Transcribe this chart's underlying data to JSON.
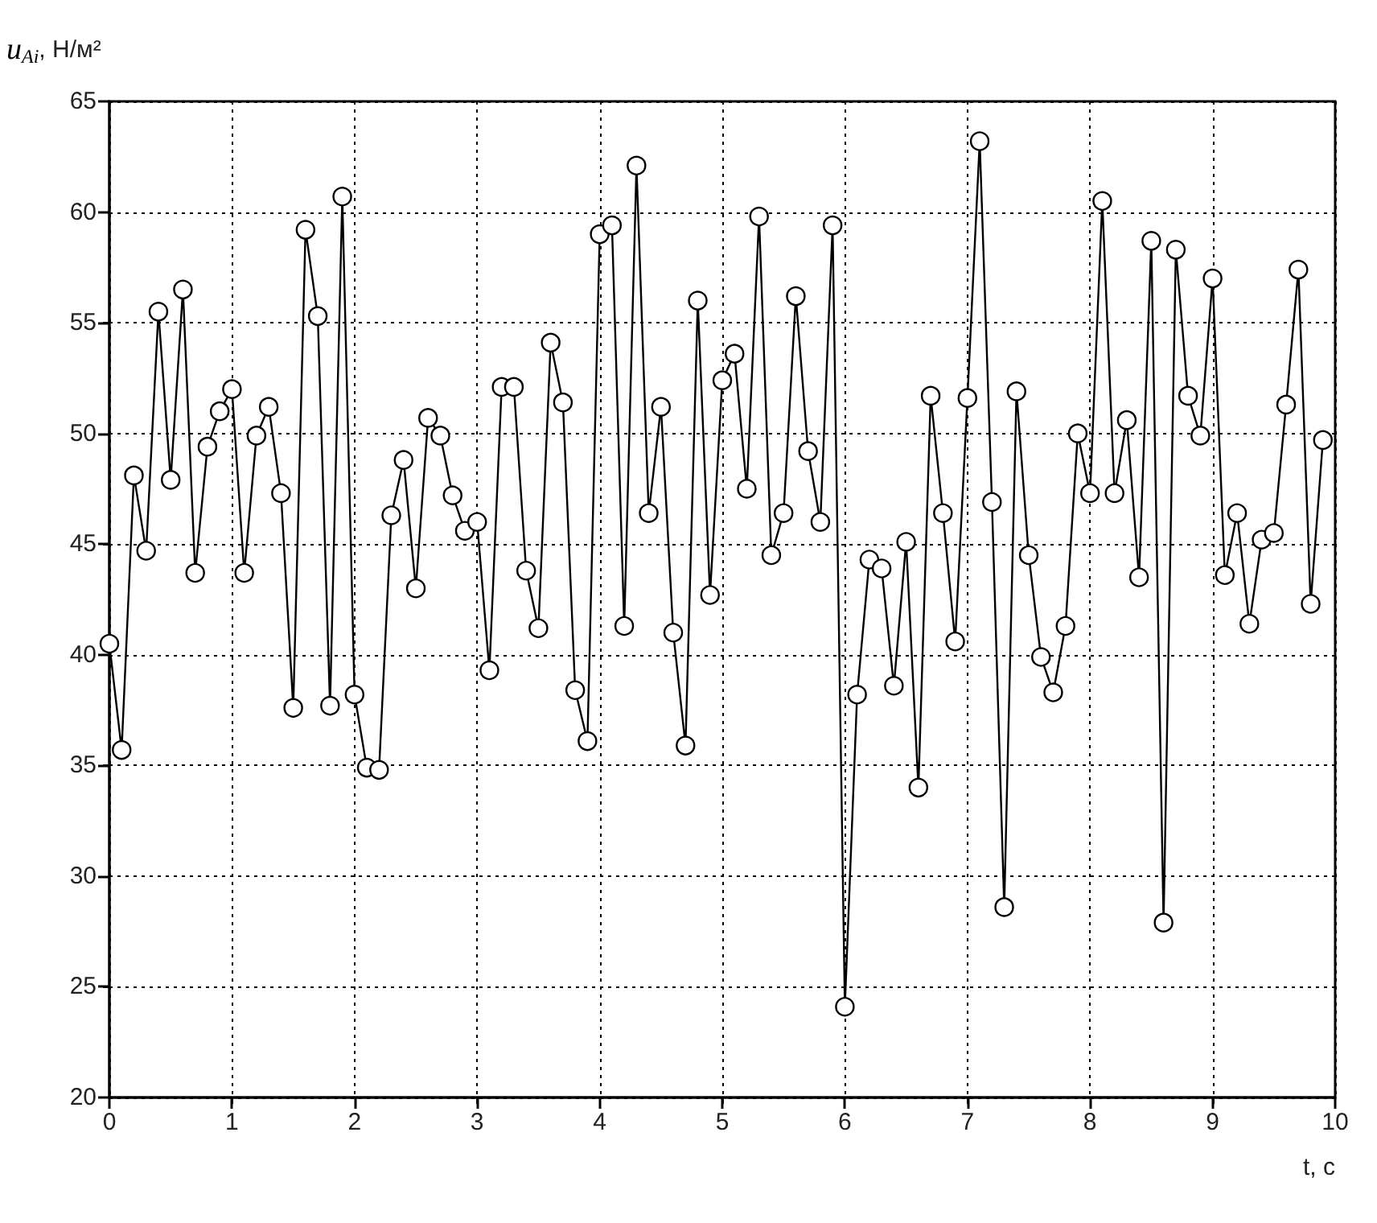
{
  "chart_data": {
    "type": "line",
    "xlabel": "t, c",
    "ylabel": "u$_{Ai}$, Н/м²",
    "x": [
      0,
      0.1,
      0.2,
      0.3,
      0.4,
      0.5,
      0.6,
      0.7,
      0.8,
      0.9,
      1,
      1.1,
      1.2,
      1.3,
      1.4,
      1.5,
      1.6,
      1.7,
      1.8,
      1.9,
      2,
      2.1,
      2.2,
      2.3,
      2.4,
      2.5,
      2.6,
      2.7,
      2.8,
      2.9,
      3,
      3.1,
      3.2,
      3.3,
      3.4,
      3.5,
      3.6,
      3.7,
      3.8,
      3.9,
      4,
      4.1,
      4.2,
      4.3,
      4.4,
      4.5,
      4.6,
      4.7,
      4.8,
      4.9,
      5,
      5.1,
      5.2,
      5.3,
      5.4,
      5.5,
      5.6,
      5.7,
      5.8,
      5.9,
      6,
      6.1,
      6.2,
      6.3,
      6.4,
      6.5,
      6.6,
      6.7,
      6.8,
      6.9,
      7,
      7.1,
      7.2,
      7.3,
      7.4,
      7.5,
      7.6,
      7.7,
      7.8,
      7.9,
      8,
      8.1,
      8.2,
      8.3,
      8.4,
      8.5,
      8.6,
      8.7,
      8.8,
      8.9,
      9,
      9.1,
      9.2,
      9.3,
      9.4,
      9.5,
      9.6,
      9.7,
      9.8,
      9.9
    ],
    "series": [
      {
        "color": "#000000",
        "values": [
          40.5,
          35.7,
          48.1,
          44.7,
          55.5,
          47.9,
          56.5,
          43.7,
          49.4,
          51.0,
          52.0,
          43.7,
          49.9,
          51.2,
          47.3,
          37.6,
          59.2,
          55.3,
          37.7,
          60.7,
          38.2,
          34.9,
          34.8,
          46.3,
          48.8,
          43.0,
          50.7,
          49.9,
          47.2,
          45.6,
          46.0,
          39.3,
          52.1,
          52.1,
          43.8,
          41.2,
          54.1,
          51.4,
          38.4,
          36.1,
          59.0,
          59.4,
          41.3,
          62.1,
          46.4,
          51.2,
          41.0,
          35.9,
          56.0,
          42.7,
          52.4,
          53.6,
          47.5,
          59.8,
          44.5,
          46.4,
          56.2,
          49.2,
          46.0,
          59.4,
          24.1,
          38.2,
          44.3,
          43.9,
          38.6,
          45.1,
          34.0,
          51.7,
          46.4,
          40.6,
          51.6,
          63.2,
          46.9,
          28.6,
          51.9,
          44.5,
          39.9,
          38.3,
          41.3,
          50.0,
          47.3,
          60.5,
          47.3,
          50.6,
          43.5,
          58.7,
          27.9,
          58.3,
          51.7,
          49.9,
          57.0,
          43.6,
          46.4,
          41.4,
          45.2,
          45.5,
          51.3,
          57.4,
          42.3,
          49.7
        ]
      }
    ],
    "xlim": [
      0,
      10
    ],
    "xticks": [
      0,
      1,
      2,
      3,
      4,
      5,
      6,
      7,
      8,
      9,
      10
    ],
    "ylim": [
      20,
      65
    ],
    "yticks": [
      20,
      25,
      30,
      35,
      40,
      45,
      50,
      55,
      60,
      65
    ],
    "grid": true,
    "marker": "circle",
    "line_style": "solid"
  }
}
